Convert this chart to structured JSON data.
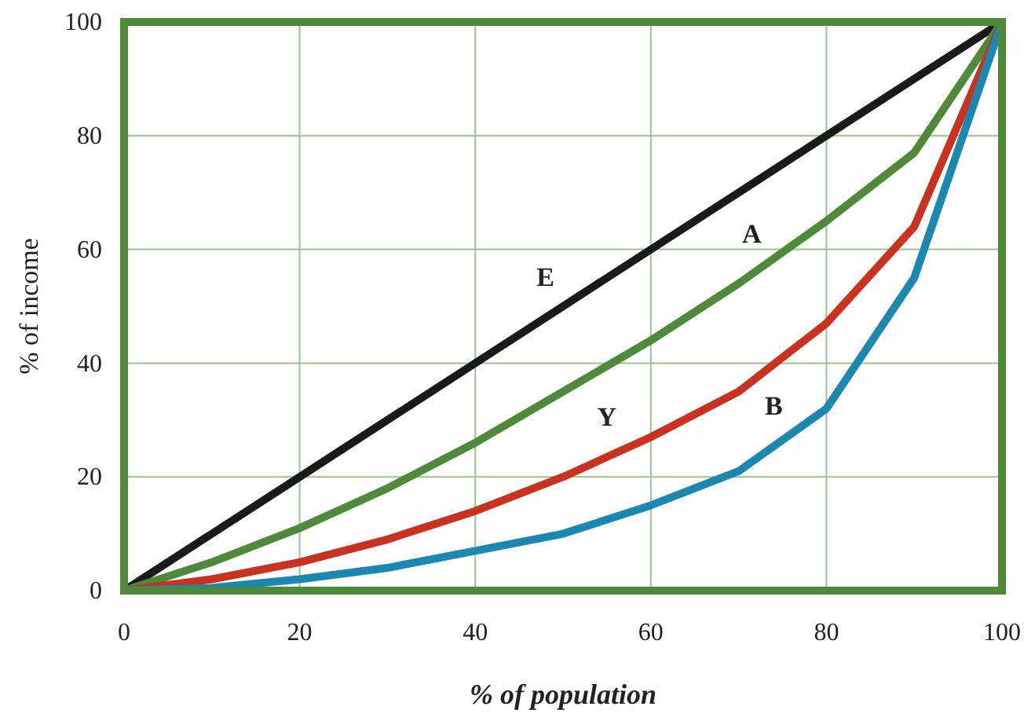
{
  "chart_data": {
    "type": "line",
    "xlabel": "% of population",
    "ylabel": "% of income",
    "x": [
      0,
      10,
      20,
      30,
      40,
      50,
      60,
      70,
      80,
      90,
      100
    ],
    "series": [
      {
        "name": "E",
        "color": "#1a1a1a",
        "values": [
          0,
          10,
          20,
          30,
          40,
          50,
          60,
          70,
          80,
          90,
          100
        ]
      },
      {
        "name": "A",
        "color": "#4e8a3a",
        "values": [
          0,
          5,
          11,
          18,
          26,
          35,
          44,
          54,
          65,
          77,
          100
        ]
      },
      {
        "name": "Y",
        "color": "#c8321f",
        "values": [
          0,
          2,
          5,
          9,
          14,
          20,
          27,
          35,
          47,
          64,
          100
        ]
      },
      {
        "name": "B",
        "color": "#1a88b0",
        "values": [
          0,
          0.5,
          2,
          4,
          7,
          10,
          15,
          21,
          32,
          55,
          100
        ]
      }
    ],
    "xlim": [
      0,
      100
    ],
    "ylim": [
      0,
      100
    ],
    "xticks": [
      0,
      20,
      40,
      60,
      80,
      100
    ],
    "yticks": [
      0,
      20,
      40,
      60,
      80,
      100
    ],
    "grid": true,
    "marker": "none",
    "line_style": "solid"
  }
}
